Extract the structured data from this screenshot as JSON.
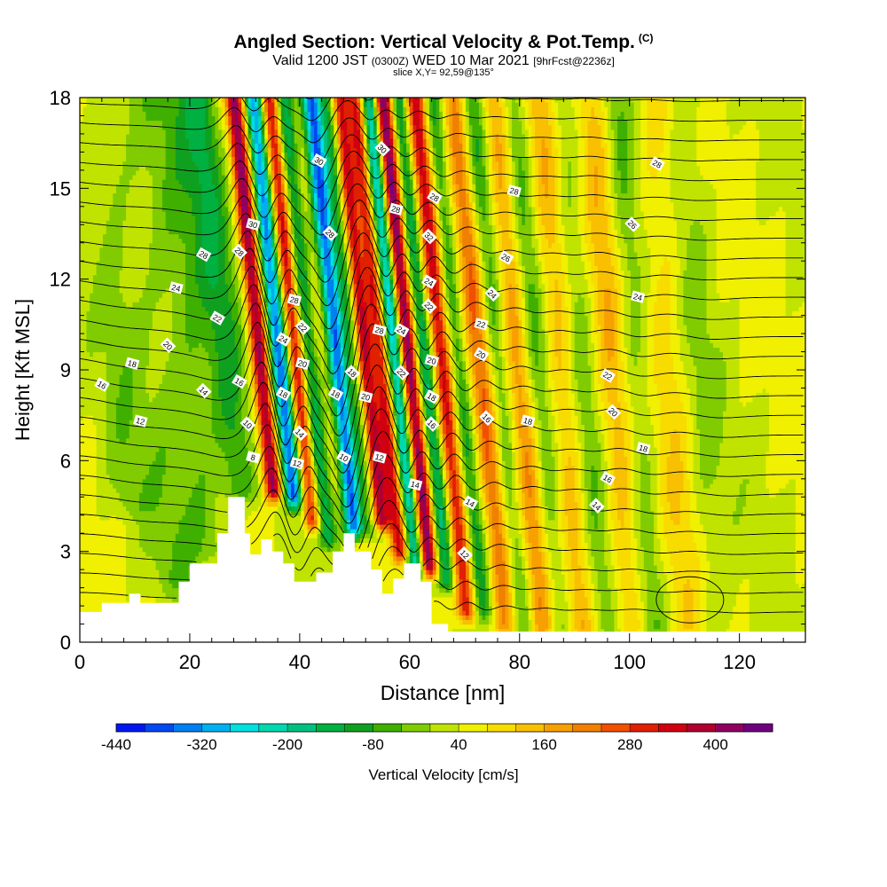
{
  "titles": {
    "main": "Angled Section: Vertical Velocity & Pot.Temp.",
    "copyright": "(C)",
    "valid_a": "Valid 1200 JST",
    "valid_b": "(0300Z)",
    "valid_c": "WED 10 Mar 2021",
    "valid_d": "[9hrFcst@2236z]",
    "slice": "slice X,Y= 92,59@135°"
  },
  "colors": {
    "background": "#ffffff",
    "terrain": "#ffffff",
    "contour": "#000000"
  },
  "chart_data": {
    "type": "heatmap",
    "xlabel": "Distance [nm]",
    "ylabel": "Height [Kft MSL]",
    "xlim": [
      0,
      132
    ],
    "ylim": [
      0,
      18
    ],
    "x_ticks": [
      "0",
      "20",
      "40",
      "60",
      "80",
      "100",
      "120"
    ],
    "y_ticks": [
      "0",
      "3",
      "6",
      "9",
      "12",
      "15",
      "18"
    ],
    "grid": false,
    "colorbar": {
      "title": "Vertical Velocity [cm/s]",
      "tick_labels": [
        "-440",
        "-320",
        "-200",
        "-80",
        "40",
        "160",
        "280",
        "400"
      ],
      "colors": [
        "#0018f0",
        "#0048f0",
        "#0080f0",
        "#00b0f0",
        "#00e0e0",
        "#00d8b0",
        "#00c080",
        "#00b040",
        "#10a020",
        "#40b000",
        "#80cc00",
        "#c0e400",
        "#f0f000",
        "#f8dc00",
        "#f8c000",
        "#f8a000",
        "#f08000",
        "#f05000",
        "#e02000",
        "#d00010",
        "#b00030",
        "#900060",
        "#700080"
      ]
    },
    "terrain_profile": {
      "x": [
        0,
        4,
        4,
        9,
        9,
        11,
        11,
        18,
        18,
        20,
        20,
        25,
        25,
        27,
        27,
        28,
        28,
        30,
        30,
        31,
        31,
        33,
        33,
        35,
        35,
        37,
        37,
        39,
        39,
        43,
        43,
        46,
        46,
        48,
        48,
        50,
        50,
        53,
        53,
        55,
        55,
        57,
        57,
        59,
        59,
        62,
        62,
        64,
        64,
        67,
        67,
        71,
        71,
        132
      ],
      "height": [
        1.0,
        1.0,
        1.3,
        1.3,
        1.6,
        1.6,
        1.3,
        1.3,
        2.0,
        2.0,
        2.6,
        2.6,
        3.6,
        3.6,
        4.8,
        4.8,
        4.8,
        4.8,
        3.6,
        3.6,
        2.9,
        2.9,
        3.4,
        3.4,
        3.0,
        3.0,
        2.6,
        2.6,
        2.0,
        2.0,
        2.3,
        2.3,
        3.0,
        3.0,
        3.6,
        3.6,
        3.0,
        3.0,
        2.4,
        2.4,
        1.6,
        1.6,
        2.1,
        2.1,
        2.6,
        2.6,
        2.0,
        2.0,
        0.6,
        0.6,
        0.35,
        0.35,
        0.35,
        0.35
      ]
    },
    "vertical_velocity_features": [
      {
        "x_center": 27,
        "tilt": 0.55,
        "width": 3.0,
        "amplitude": -120,
        "ybot": 5.0,
        "ytop": 18
      },
      {
        "x_center": 33,
        "tilt": 0.55,
        "width": 1.6,
        "amplitude": 380,
        "ybot": 5.0,
        "ytop": 18
      },
      {
        "x_center": 36.5,
        "tilt": 0.55,
        "width": 1.6,
        "amplitude": -380,
        "ybot": 4.8,
        "ytop": 18
      },
      {
        "x_center": 39.5,
        "tilt": 0.55,
        "width": 1.4,
        "amplitude": 280,
        "ybot": 4.0,
        "ytop": 18
      },
      {
        "x_center": 42,
        "tilt": 0.55,
        "width": 1.6,
        "amplitude": -180,
        "ybot": 3.5,
        "ytop": 18
      },
      {
        "x_center": 47,
        "tilt": 0.55,
        "width": 1.6,
        "amplitude": -400,
        "ybot": 3.8,
        "ytop": 18
      },
      {
        "x_center": 50.5,
        "tilt": 0.55,
        "width": 2.0,
        "amplitude": -180,
        "ybot": 3.8,
        "ytop": 18
      },
      {
        "x_center": 52,
        "tilt": 0.55,
        "width": 1.6,
        "amplitude": 400,
        "ybot": 4.0,
        "ytop": 18
      },
      {
        "x_center": 55,
        "tilt": 0.55,
        "width": 1.6,
        "amplitude": 300,
        "ybot": 3.0,
        "ytop": 18
      },
      {
        "x_center": 57.5,
        "tilt": 0.55,
        "width": 1.6,
        "amplitude": -320,
        "ybot": 2.5,
        "ytop": 18
      },
      {
        "x_center": 60,
        "tilt": 0.55,
        "width": 1.6,
        "amplitude": 420,
        "ybot": 2.5,
        "ytop": 18
      },
      {
        "x_center": 63,
        "tilt": 0.55,
        "width": 1.6,
        "amplitude": -200,
        "ybot": 2.0,
        "ytop": 18
      },
      {
        "x_center": 66,
        "tilt": 0.55,
        "width": 1.8,
        "amplitude": 300,
        "ybot": 1.0,
        "ytop": 18
      },
      {
        "x_center": 69,
        "tilt": 0.55,
        "width": 1.8,
        "amplitude": -140,
        "ybot": 1.0,
        "ytop": 18
      },
      {
        "x_center": 73,
        "tilt": 0.55,
        "width": 2.2,
        "amplitude": 200,
        "ybot": 0.5,
        "ytop": 18
      },
      {
        "x_center": 76,
        "tilt": 0.55,
        "width": 2.2,
        "amplitude": -120,
        "ybot": 0.5,
        "ytop": 18
      },
      {
        "x_center": 80,
        "tilt": 0.5,
        "width": 2.5,
        "amplitude": 160,
        "ybot": 0.5,
        "ytop": 18
      },
      {
        "x_center": 83,
        "tilt": 0.5,
        "width": 2.5,
        "amplitude": -100,
        "ybot": 0.5,
        "ytop": 18
      },
      {
        "x_center": 88,
        "tilt": 0.45,
        "width": 3.0,
        "amplitude": 130,
        "ybot": 0.5,
        "ytop": 18
      },
      {
        "x_center": 91,
        "tilt": 0.45,
        "width": 3.0,
        "amplitude": -90,
        "ybot": 0.5,
        "ytop": 18
      },
      {
        "x_center": 97,
        "tilt": 0.4,
        "width": 3.0,
        "amplitude": 110,
        "ybot": 0.5,
        "ytop": 18
      },
      {
        "x_center": 101,
        "tilt": 0.4,
        "width": 3.0,
        "amplitude": -80,
        "ybot": 0.5,
        "ytop": 18
      },
      {
        "x_center": 108,
        "tilt": 0.35,
        "width": 4.0,
        "amplitude": 80,
        "ybot": 0.5,
        "ytop": 18
      },
      {
        "x_center": 112,
        "tilt": 0.35,
        "width": 4.0,
        "amplitude": -60,
        "ybot": 0.5,
        "ytop": 18
      },
      {
        "x_center": 22,
        "tilt": 0.3,
        "width": 4.0,
        "amplitude": -70,
        "ybot": 3.0,
        "ytop": 18
      },
      {
        "x_center": 16,
        "tilt": 0.3,
        "width": 5.0,
        "amplitude": -60,
        "ybot": 2.0,
        "ytop": 18
      },
      {
        "x_center": 8,
        "tilt": 0.3,
        "width": 4.0,
        "amplitude": -50,
        "ybot": 4.5,
        "ytop": 18
      }
    ],
    "contour_labels": [
      {
        "text": "30",
        "x": 31.5,
        "y": 13.8
      },
      {
        "text": "28",
        "x": 22.5,
        "y": 12.8
      },
      {
        "text": "28",
        "x": 29,
        "y": 12.9
      },
      {
        "text": "24",
        "x": 17.5,
        "y": 11.7
      },
      {
        "text": "22",
        "x": 25,
        "y": 10.7
      },
      {
        "text": "20",
        "x": 16,
        "y": 9.8
      },
      {
        "text": "18",
        "x": 9.5,
        "y": 9.2
      },
      {
        "text": "16",
        "x": 4,
        "y": 8.5
      },
      {
        "text": "14",
        "x": 22.5,
        "y": 8.3
      },
      {
        "text": "12",
        "x": 11,
        "y": 7.3
      },
      {
        "text": "16",
        "x": 29,
        "y": 8.6
      },
      {
        "text": "10",
        "x": 30.5,
        "y": 7.2
      },
      {
        "text": "8",
        "x": 31.5,
        "y": 6.1
      },
      {
        "text": "30",
        "x": 43.5,
        "y": 15.9
      },
      {
        "text": "28",
        "x": 45.5,
        "y": 13.5
      },
      {
        "text": "28",
        "x": 39,
        "y": 11.3
      },
      {
        "text": "24",
        "x": 37,
        "y": 10.0
      },
      {
        "text": "22",
        "x": 40.5,
        "y": 10.4
      },
      {
        "text": "20",
        "x": 40.5,
        "y": 9.2
      },
      {
        "text": "18",
        "x": 37,
        "y": 8.2
      },
      {
        "text": "14",
        "x": 40,
        "y": 6.9
      },
      {
        "text": "12",
        "x": 39.5,
        "y": 5.9
      },
      {
        "text": "18",
        "x": 46.5,
        "y": 8.2
      },
      {
        "text": "18",
        "x": 49.5,
        "y": 8.9
      },
      {
        "text": "20",
        "x": 52,
        "y": 8.1
      },
      {
        "text": "10",
        "x": 48,
        "y": 6.1
      },
      {
        "text": "30",
        "x": 55,
        "y": 16.3
      },
      {
        "text": "28",
        "x": 57.5,
        "y": 14.3
      },
      {
        "text": "28",
        "x": 64.5,
        "y": 14.7
      },
      {
        "text": "32",
        "x": 63.5,
        "y": 13.4
      },
      {
        "text": "28",
        "x": 54.5,
        "y": 10.3
      },
      {
        "text": "24",
        "x": 58.5,
        "y": 10.3
      },
      {
        "text": "22",
        "x": 58.5,
        "y": 8.9
      },
      {
        "text": "12",
        "x": 54.5,
        "y": 6.1
      },
      {
        "text": "24",
        "x": 63.5,
        "y": 11.9
      },
      {
        "text": "22",
        "x": 63.5,
        "y": 11.1
      },
      {
        "text": "20",
        "x": 64,
        "y": 9.3
      },
      {
        "text": "18",
        "x": 64,
        "y": 8.1
      },
      {
        "text": "16",
        "x": 64,
        "y": 7.2
      },
      {
        "text": "14",
        "x": 61,
        "y": 5.2
      },
      {
        "text": "14",
        "x": 71,
        "y": 4.6
      },
      {
        "text": "12",
        "x": 70,
        "y": 2.9
      },
      {
        "text": "28",
        "x": 79,
        "y": 14.9
      },
      {
        "text": "26",
        "x": 77.5,
        "y": 12.7
      },
      {
        "text": "24",
        "x": 75,
        "y": 11.5
      },
      {
        "text": "22",
        "x": 73,
        "y": 10.5
      },
      {
        "text": "20",
        "x": 73,
        "y": 9.5
      },
      {
        "text": "16",
        "x": 74,
        "y": 7.4
      },
      {
        "text": "18",
        "x": 81.5,
        "y": 7.3
      },
      {
        "text": "28",
        "x": 105,
        "y": 15.8
      },
      {
        "text": "26",
        "x": 100.5,
        "y": 13.8
      },
      {
        "text": "24",
        "x": 101.5,
        "y": 11.4
      },
      {
        "text": "22",
        "x": 96,
        "y": 8.8
      },
      {
        "text": "20",
        "x": 97,
        "y": 7.6
      },
      {
        "text": "18",
        "x": 102.5,
        "y": 6.4
      },
      {
        "text": "16",
        "x": 96,
        "y": 5.4
      },
      {
        "text": "14",
        "x": 94,
        "y": 4.5
      }
    ]
  }
}
